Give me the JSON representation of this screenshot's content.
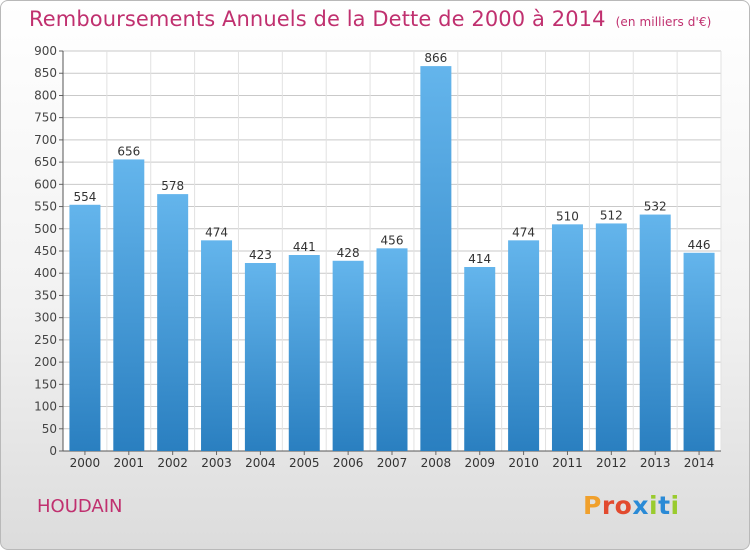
{
  "header": {
    "title": "Remboursements Annuels de la Dette de 2000 à 2014",
    "subtitle": "(en milliers d'€)"
  },
  "footer": {
    "town": "HOUDAIN",
    "logo": "Proxiti"
  },
  "colors": {
    "title": "#c0306f",
    "bar_top": "#64b5ec",
    "bar_bottom": "#2a7fc0",
    "grid": "#c9c9c9",
    "logo": [
      "#f0a02c",
      "#e24a2e",
      "#e24a2e",
      "#2a8ad6",
      "#9acb2e",
      "#2a8ad6",
      "#9acb2e"
    ]
  },
  "chart_data": {
    "type": "bar",
    "categories": [
      "2000",
      "2001",
      "2002",
      "2003",
      "2004",
      "2005",
      "2006",
      "2007",
      "2008",
      "2009",
      "2010",
      "2011",
      "2012",
      "2013",
      "2014"
    ],
    "values": [
      554,
      656,
      578,
      474,
      423,
      441,
      428,
      456,
      866,
      414,
      474,
      510,
      512,
      532,
      446
    ],
    "title": "Remboursements Annuels de la Dette de 2000 à 2014",
    "xlabel": "",
    "ylabel": "",
    "ylim": [
      0,
      900
    ],
    "yticks": [
      0,
      50,
      100,
      150,
      200,
      250,
      300,
      350,
      400,
      450,
      500,
      550,
      600,
      650,
      700,
      750,
      800,
      850,
      900
    ],
    "grid": true,
    "data_labels": true
  }
}
